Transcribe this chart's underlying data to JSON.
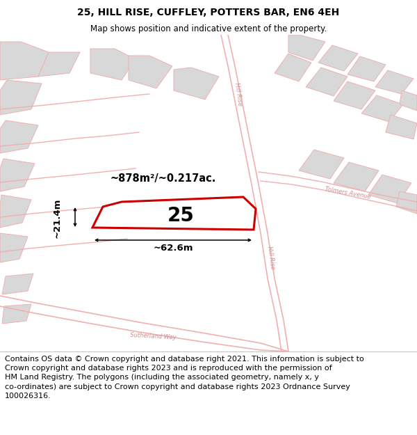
{
  "title": "25, HILL RISE, CUFFLEY, POTTERS BAR, EN6 4EH",
  "subtitle": "Map shows position and indicative extent of the property.",
  "footer": "Contains OS data © Crown copyright and database right 2021. This information is subject to\nCrown copyright and database rights 2023 and is reproduced with the permission of\nHM Land Registry. The polygons (including the associated geometry, namely x, y\nco-ordinates) are subject to Crown copyright and database rights 2023 Ordnance Survey\n100026316.",
  "area_label": "~878m²/~0.217ac.",
  "width_label": "~62.6m",
  "height_label": "~21.4m",
  "property_number": "25",
  "title_fontsize": 10,
  "subtitle_fontsize": 8.5,
  "footer_fontsize": 8.0,
  "map_bg": "#ebebeb",
  "highlight_color": "#cc0000",
  "road_label_color": "#c89090",
  "road_color": "#f0b0b0"
}
